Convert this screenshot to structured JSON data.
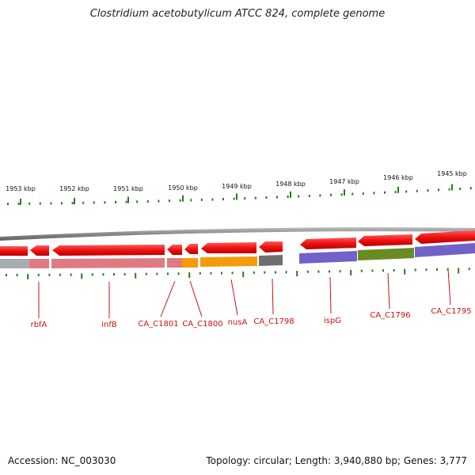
{
  "title": "Clostridium acetobutylicum ATCC 824, complete genome",
  "accession": "Accession: NC_003030",
  "summary": "Topology: circular; Length: 3,940,880 bp; Genes: 3,777",
  "scale_labels": [
    "1953 kbp",
    "1952 kbp",
    "1951 kbp",
    "1950 kbp",
    "1949 kbp",
    "1948 kbp",
    "1947 kbp",
    "1946 kbp",
    "1945 kbp"
  ],
  "gene_labels": [
    "rbfA",
    "infB",
    "CA_C1801",
    "CA_C1800",
    "nusA",
    "CA_C1798",
    "ispG",
    "CA_C1796",
    "CA_C1795"
  ],
  "colors": {
    "arrow": "#ee1c1c",
    "label": "#cc1111",
    "tick": "#2a7a1a",
    "backbone": "#888888"
  }
}
